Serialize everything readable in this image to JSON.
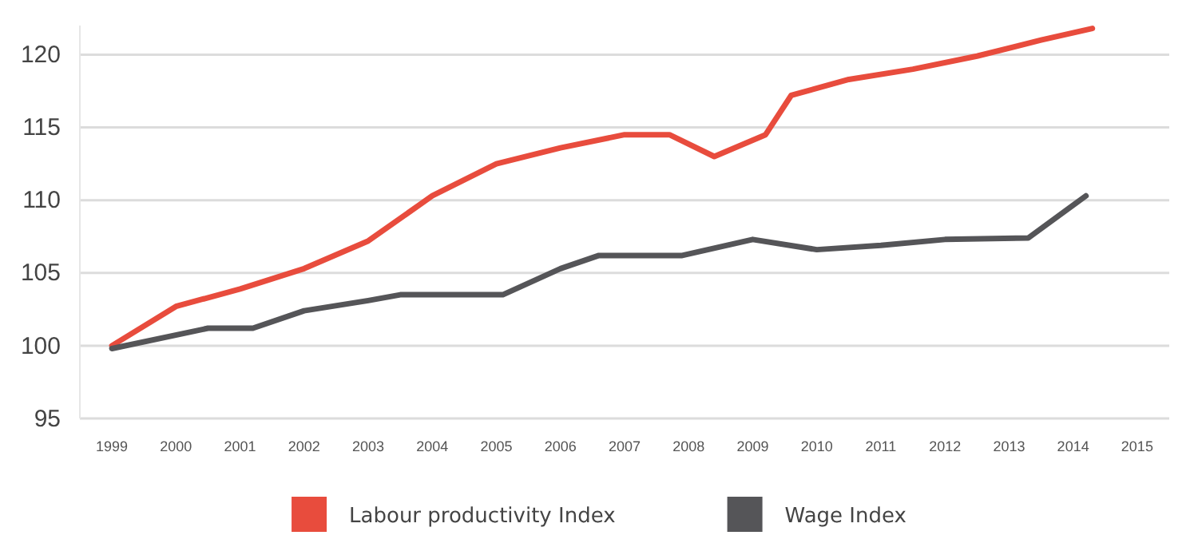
{
  "chart_data": {
    "type": "line",
    "xlim": [
      1998.5,
      2015.5
    ],
    "xticks": [
      1999,
      2000,
      2001,
      2002,
      2003,
      2004,
      2005,
      2006,
      2007,
      2008,
      2009,
      2010,
      2011,
      2012,
      2013,
      2014,
      2015
    ],
    "ylim": [
      95,
      122
    ],
    "yticks": [
      95,
      100,
      105,
      110,
      115,
      120
    ],
    "grid": "y",
    "legend": "bottom",
    "marker": "none",
    "line_style": "solid",
    "series": [
      {
        "name": "Labour productivity Index",
        "color": "#e84c3d",
        "x": [
          1999,
          2000,
          2001,
          2002,
          2003,
          2004,
          2005,
          2006,
          2007,
          2007.7,
          2008.4,
          2009.2,
          2009.6,
          2010.5,
          2011.5,
          2012.5,
          2013.5,
          2014.3
        ],
        "values": [
          100,
          102.7,
          103.9,
          105.3,
          107.2,
          110.3,
          112.5,
          113.6,
          114.5,
          114.5,
          113,
          114.5,
          117.2,
          118.3,
          119,
          119.9,
          121,
          121.8
        ]
      },
      {
        "name": "Wage Index",
        "color": "#555558",
        "x": [
          1999,
          2000.5,
          2001.2,
          2002,
          2003,
          2003.5,
          2005.1,
          2006,
          2006.6,
          2007.9,
          2009,
          2010,
          2011,
          2012,
          2013.3,
          2014.2
        ],
        "values": [
          99.8,
          101.2,
          101.2,
          102.4,
          103.1,
          103.5,
          103.5,
          105.3,
          106.2,
          106.2,
          107.3,
          106.6,
          106.9,
          107.3,
          107.4,
          110.3
        ]
      }
    ]
  }
}
